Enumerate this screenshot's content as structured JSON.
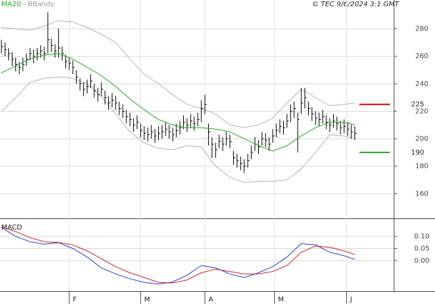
{
  "chart_data": [
    {
      "type": "hlc",
      "credit": "© TEC 9/6/2024 3:1 GMT",
      "color": "#000000",
      "grid": true,
      "xlim": [
        -0.4,
        110
      ],
      "xticks": [
        {
          "value": 19,
          "label": "F"
        },
        {
          "value": 39,
          "label": "M"
        },
        {
          "value": 57,
          "label": "A"
        },
        {
          "value": 76.5,
          "label": "M"
        },
        {
          "value": 96.7,
          "label": "J"
        }
      ],
      "ylim": [
        142,
        301
      ],
      "yticks": [
        160,
        180,
        200,
        220,
        240,
        260,
        280
      ],
      "high": [
        272,
        270,
        266,
        263,
        259,
        256,
        259,
        262,
        266,
        265,
        266,
        268,
        267,
        292,
        273,
        269,
        280,
        267,
        261,
        259,
        257,
        250,
        244,
        241,
        243,
        247,
        240,
        237,
        241,
        235,
        231,
        233,
        231,
        227,
        225,
        221,
        219,
        215,
        217,
        211,
        209,
        208,
        210,
        207,
        209,
        210,
        212,
        210,
        208,
        211,
        213,
        217,
        215,
        218,
        216,
        219,
        228,
        232,
        211,
        201,
        197,
        203,
        201,
        205,
        203,
        191,
        189,
        187,
        185,
        189,
        195,
        201,
        199,
        205,
        204,
        201,
        207,
        211,
        214,
        213,
        218,
        225,
        227,
        219,
        237,
        237,
        227,
        223,
        220,
        219,
        221,
        217,
        215,
        218,
        216,
        213,
        214,
        212,
        210,
        209
      ],
      "low": [
        262,
        260,
        257,
        253,
        249,
        247,
        249,
        253,
        257,
        255,
        257,
        259,
        257,
        262,
        263,
        259,
        259,
        257,
        251,
        250,
        247,
        240,
        235,
        231,
        233,
        237,
        230,
        227,
        231,
        225,
        221,
        223,
        221,
        217,
        215,
        211,
        209,
        205,
        207,
        201,
        199,
        198,
        200,
        197,
        199,
        200,
        202,
        200,
        198,
        201,
        203,
        207,
        205,
        208,
        206,
        209,
        212,
        218,
        195,
        186,
        186,
        193,
        191,
        195,
        193,
        181,
        179,
        177,
        175,
        179,
        185,
        191,
        189,
        195,
        194,
        191,
        197,
        201,
        204,
        203,
        208,
        212,
        215,
        190,
        218,
        222,
        217,
        213,
        210,
        209,
        211,
        207,
        205,
        208,
        206,
        203,
        204,
        202,
        200,
        199
      ],
      "close": [
        267,
        265,
        262,
        258,
        254,
        252,
        254,
        258,
        262,
        260,
        262,
        264,
        262,
        272,
        268,
        264,
        266,
        262,
        256,
        255,
        252,
        245,
        240,
        236,
        238,
        242,
        235,
        232,
        236,
        230,
        226,
        228,
        226,
        222,
        220,
        216,
        214,
        210,
        212,
        206,
        204,
        203,
        205,
        202,
        204,
        205,
        207,
        205,
        203,
        206,
        208,
        212,
        210,
        213,
        211,
        214,
        222,
        225,
        205,
        196,
        192,
        198,
        196,
        200,
        198,
        186,
        184,
        182,
        180,
        184,
        190,
        196,
        194,
        200,
        199,
        196,
        202,
        206,
        209,
        208,
        213,
        220,
        222,
        214,
        226,
        230,
        222,
        218,
        215,
        214,
        216,
        212,
        210,
        213,
        211,
        208,
        209,
        207,
        205,
        204
      ],
      "lines": [
        {
          "name": "MA20",
          "color": "#22aa22",
          "x": [
            0,
            4,
            8,
            12,
            16,
            20,
            24,
            28,
            32,
            36,
            40,
            44,
            48,
            52,
            56,
            60,
            64,
            68,
            72,
            76,
            80,
            84,
            88,
            92,
            96,
            99
          ],
          "values": [
            248,
            253,
            258,
            261,
            262,
            258,
            252,
            246,
            238,
            229,
            221,
            214,
            210,
            208,
            208,
            207,
            205,
            200,
            195,
            191,
            195,
            202,
            208,
            212,
            212,
            210
          ]
        },
        {
          "name": "BBands",
          "color": "#b4b4b4",
          "x": [
            0,
            4,
            8,
            12,
            16,
            20,
            24,
            28,
            32,
            36,
            40,
            44,
            48,
            52,
            56,
            60,
            64,
            68,
            72,
            76,
            80,
            84,
            88,
            92,
            96,
            99
          ],
          "upper": [
            281,
            280,
            279,
            282,
            286,
            285,
            281,
            276,
            270,
            258,
            247,
            240,
            232,
            225,
            222,
            218,
            210,
            208,
            210,
            215,
            226,
            236,
            230,
            224,
            225,
            226
          ],
          "lower": [
            220,
            230,
            241,
            244,
            245,
            244,
            240,
            231,
            218,
            205,
            197,
            193,
            192,
            195,
            194,
            180,
            172,
            168,
            169,
            169,
            170,
            178,
            190,
            203,
            202,
            200
          ]
        }
      ],
      "levels": [
        {
          "value": 225,
          "color": "#cc0000"
        },
        {
          "value": 190,
          "color": "#22aa22"
        }
      ]
    },
    {
      "type": "macd",
      "title": "MACD",
      "grid": true,
      "xlim": [
        -0.4,
        110
      ],
      "ylim": [
        -0.126,
        0.166
      ],
      "yticks": [
        {
          "value": 0.1,
          "label": "0.10"
        },
        {
          "value": 0.05,
          "label": "0.05"
        },
        {
          "value": 0,
          "label": "0.00"
        }
      ],
      "series": [
        {
          "color": "#1f3fd6",
          "x": [
            0,
            4,
            8,
            12,
            16,
            20,
            24,
            28,
            32,
            36,
            40,
            44,
            48,
            52,
            56,
            60,
            64,
            68,
            72,
            76,
            80,
            84,
            88,
            92,
            96,
            99
          ],
          "values": [
            0.137,
            0.1,
            0.078,
            0.068,
            0.074,
            0.05,
            0.015,
            -0.03,
            -0.055,
            -0.075,
            -0.09,
            -0.097,
            -0.088,
            -0.06,
            -0.02,
            -0.03,
            -0.055,
            -0.07,
            -0.05,
            -0.025,
            0.015,
            0.07,
            0.065,
            0.035,
            0.02,
            0.005
          ]
        },
        {
          "color": "#d42020",
          "x": [
            0,
            4,
            8,
            12,
            16,
            20,
            24,
            28,
            32,
            36,
            40,
            44,
            48,
            52,
            56,
            60,
            64,
            68,
            72,
            76,
            80,
            84,
            88,
            92,
            96,
            99
          ],
          "values": [
            0.14,
            0.12,
            0.095,
            0.078,
            0.075,
            0.065,
            0.04,
            0.008,
            -0.025,
            -0.05,
            -0.07,
            -0.09,
            -0.092,
            -0.08,
            -0.05,
            -0.035,
            -0.045,
            -0.055,
            -0.055,
            -0.045,
            -0.02,
            0.035,
            0.06,
            0.055,
            0.04,
            0.025
          ]
        }
      ]
    }
  ]
}
